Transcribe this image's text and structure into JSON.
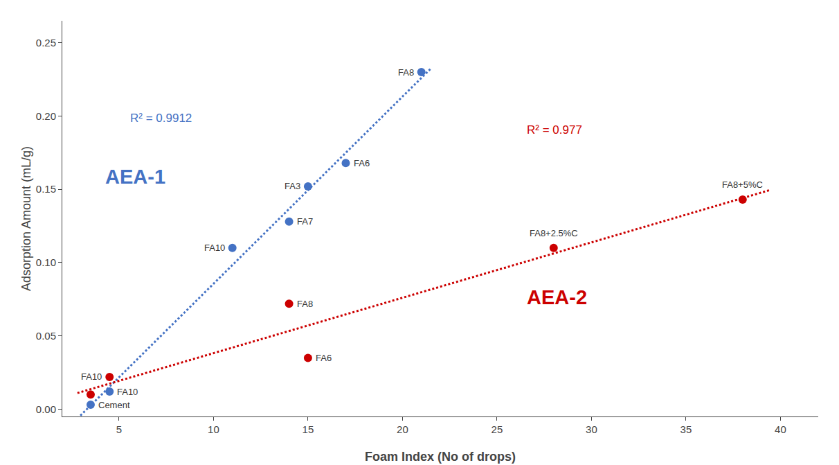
{
  "chart_data": {
    "type": "scatter",
    "xlabel": "Foam Index (No of drops)",
    "ylabel": "Adsorption Amount (mL/g)",
    "xlim": [
      2,
      42
    ],
    "ylim": [
      -0.005,
      0.265
    ],
    "xticks": [
      5,
      10,
      15,
      20,
      25,
      30,
      35,
      40
    ],
    "yticks": [
      {
        "value": 0,
        "label": "0.00"
      },
      0.05,
      {
        "value": 0.1,
        "label": "0.10"
      },
      0.15,
      {
        "value": 0.2,
        "label": "0.20"
      },
      0.25
    ],
    "grid": false,
    "series": [
      {
        "name": "AEA-1",
        "color": "#4472C4",
        "marker": "circle",
        "x": [
          3.5,
          4.5,
          11,
          14,
          15,
          17,
          21
        ],
        "values": [
          0.003,
          0.012,
          0.11,
          0.128,
          0.152,
          0.168,
          0.23
        ],
        "labels": [
          "Cement",
          "FA10",
          "FA10",
          "FA7",
          "FA3",
          "FA6",
          "FA8"
        ],
        "trendline": {
          "line_style": "dotted",
          "r2_text": "R² = 0.9912",
          "x": [
            2.8,
            7.475,
            12.15,
            16.825,
            21.5
          ],
          "values": [
            -0.0064,
            0.0533,
            0.113,
            0.1727,
            0.2324
          ]
        }
      },
      {
        "name": "AEA-2",
        "color": "#CC0000",
        "marker": "circle",
        "x": [
          3.5,
          4.5,
          14,
          15,
          28,
          38
        ],
        "values": [
          0.01,
          0.022,
          0.072,
          0.035,
          0.11,
          0.143
        ],
        "labels": [
          null,
          "FA10",
          "FA8",
          "FA6",
          "FA8+2.5%C",
          "FA8+5%C"
        ],
        "trendline": {
          "line_style": "dotted",
          "r2_text": "R² = 0.977",
          "x": [
            2.8,
            39.5
          ],
          "values": [
            0.011,
            0.1497
          ]
        }
      }
    ]
  }
}
